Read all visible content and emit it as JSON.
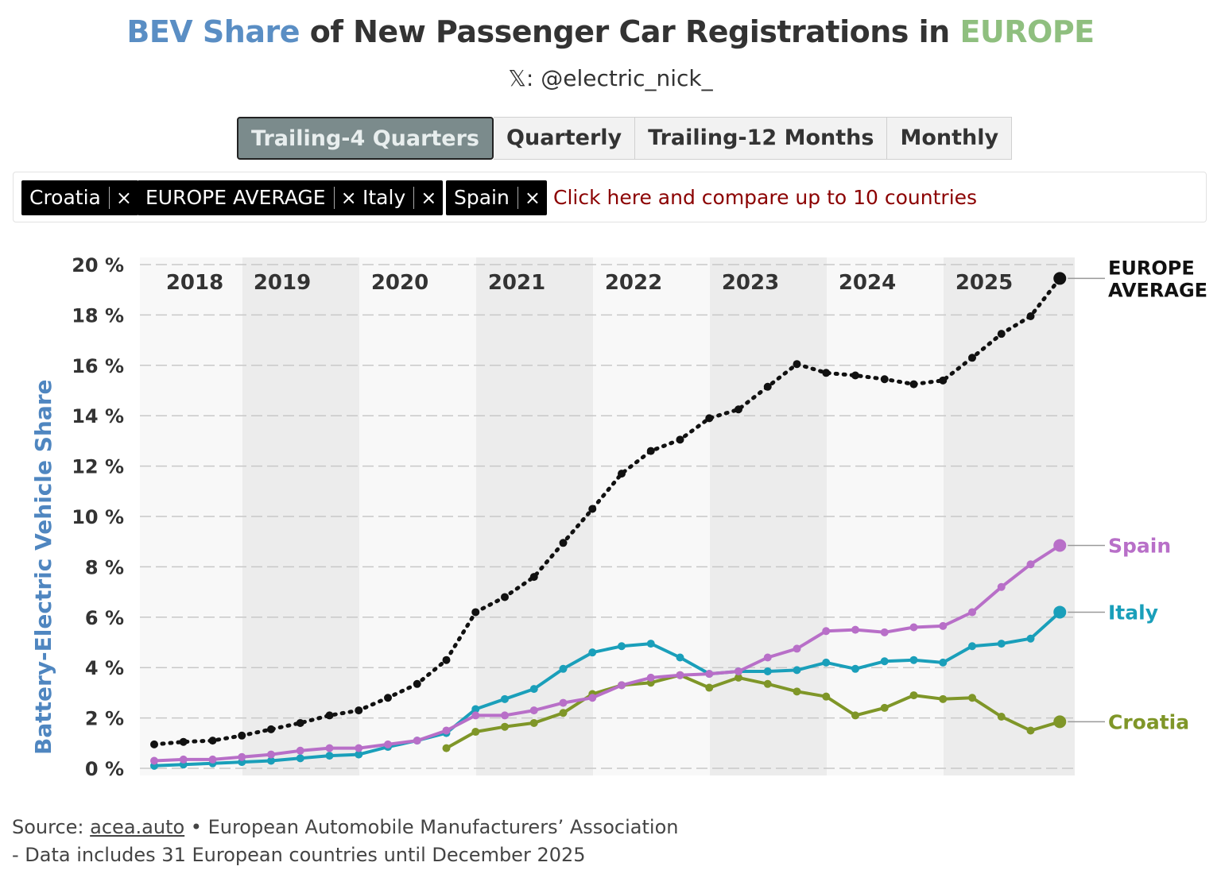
{
  "header": {
    "title_part1": "BEV Share",
    "title_part2": " of New Passenger Car Registrations in ",
    "title_part3": "EUROPE",
    "handle": "𝕏: @electric_nick_"
  },
  "tabs": [
    {
      "label": "Trailing-4 Quarters",
      "active": true
    },
    {
      "label": "Quarterly",
      "active": false
    },
    {
      "label": "Trailing-12 Months",
      "active": false
    },
    {
      "label": "Monthly",
      "active": false
    }
  ],
  "filters": {
    "chips": [
      "Croatia",
      "EUROPE AVERAGE",
      "Italy",
      "Spain"
    ],
    "remove_glyph": "×",
    "compare_text": "Click here and compare up to 10 countries"
  },
  "colors": {
    "europe": "#111111",
    "spain": "#b86fc8",
    "italy": "#1a9fba",
    "croatia": "#7f9628",
    "band_light": "#f8f8f8",
    "band_dark": "#ececec",
    "ylabel": "#4f86c0"
  },
  "chart_data": {
    "type": "line",
    "ylabel": "Battery-Electric Vehicle Share",
    "ylim": [
      0,
      20
    ],
    "yticks": [
      0,
      2,
      4,
      6,
      8,
      10,
      12,
      14,
      16,
      18,
      20
    ],
    "ytick_suffix": " %",
    "years": [
      "2018",
      "2019",
      "2020",
      "2021",
      "2022",
      "2023",
      "2024",
      "2025"
    ],
    "x_quarters": [
      "2018Q1",
      "2018Q2",
      "2018Q3",
      "2018Q4",
      "2019Q1",
      "2019Q2",
      "2019Q3",
      "2019Q4",
      "2020Q1",
      "2020Q2",
      "2020Q3",
      "2020Q4",
      "2021Q1",
      "2021Q2",
      "2021Q3",
      "2021Q4",
      "2022Q1",
      "2022Q2",
      "2022Q3",
      "2022Q4",
      "2023Q1",
      "2023Q2",
      "2023Q3",
      "2023Q4",
      "2024Q1",
      "2024Q2",
      "2024Q3",
      "2024Q4",
      "2025Q1",
      "2025Q2",
      "2025Q3",
      "2025Q4"
    ],
    "series": [
      {
        "name": "EUROPE AVERAGE",
        "label": "EUROPE\nAVERAGE",
        "style": "dotted",
        "start": 0,
        "values": [
          0.95,
          1.05,
          1.1,
          1.3,
          1.55,
          1.8,
          2.1,
          2.3,
          2.8,
          3.35,
          4.3,
          6.2,
          6.8,
          7.6,
          8.95,
          10.3,
          11.7,
          12.6,
          13.05,
          13.9,
          14.25,
          15.15,
          16.05,
          15.7,
          15.6,
          15.45,
          15.25,
          15.4,
          16.3,
          17.25,
          17.95,
          19.45
        ]
      },
      {
        "name": "Spain",
        "label": "Spain",
        "style": "solid",
        "start": 0,
        "values": [
          0.3,
          0.35,
          0.35,
          0.45,
          0.55,
          0.7,
          0.8,
          0.8,
          0.95,
          1.1,
          1.5,
          2.1,
          2.1,
          2.3,
          2.6,
          2.8,
          3.3,
          3.6,
          3.7,
          3.75,
          3.85,
          4.4,
          4.75,
          5.45,
          5.5,
          5.4,
          5.6,
          5.65,
          6.2,
          7.2,
          8.1,
          8.85
        ]
      },
      {
        "name": "Italy",
        "label": "Italy",
        "style": "solid",
        "start": 0,
        "values": [
          0.1,
          0.15,
          0.2,
          0.25,
          0.3,
          0.4,
          0.5,
          0.55,
          0.85,
          1.1,
          1.4,
          2.35,
          2.75,
          3.15,
          3.95,
          4.6,
          4.85,
          4.95,
          4.4,
          3.75,
          3.85,
          3.85,
          3.9,
          4.2,
          3.95,
          4.25,
          4.3,
          4.2,
          4.85,
          4.95,
          5.15,
          6.2
        ]
      },
      {
        "name": "Croatia",
        "label": "Croatia",
        "style": "solid",
        "start": 10,
        "values": [
          0.8,
          1.45,
          1.65,
          1.8,
          2.2,
          2.95,
          3.3,
          3.4,
          3.7,
          3.2,
          3.6,
          3.35,
          3.05,
          2.85,
          2.1,
          2.4,
          2.9,
          2.75,
          2.8,
          2.05,
          1.5,
          1.85
        ]
      }
    ]
  },
  "footer": {
    "source_label": "Source: ",
    "source_link": "acea.auto",
    "source_rest": " • European Automobile Manufacturers’ Association",
    "note": "- Data includes 31 European countries until December 2025"
  }
}
